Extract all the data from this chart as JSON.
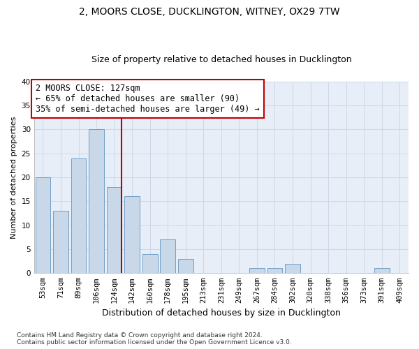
{
  "title": "2, MOORS CLOSE, DUCKLINGTON, WITNEY, OX29 7TW",
  "subtitle": "Size of property relative to detached houses in Ducklington",
  "xlabel": "Distribution of detached houses by size in Ducklington",
  "ylabel": "Number of detached properties",
  "categories": [
    "53sqm",
    "71sqm",
    "89sqm",
    "106sqm",
    "124sqm",
    "142sqm",
    "160sqm",
    "178sqm",
    "195sqm",
    "213sqm",
    "231sqm",
    "249sqm",
    "267sqm",
    "284sqm",
    "302sqm",
    "320sqm",
    "338sqm",
    "356sqm",
    "373sqm",
    "391sqm",
    "409sqm"
  ],
  "values": [
    20,
    13,
    24,
    30,
    18,
    16,
    4,
    7,
    3,
    0,
    0,
    0,
    1,
    1,
    2,
    0,
    0,
    0,
    0,
    1,
    0
  ],
  "bar_color": "#c8d8e8",
  "bar_edgecolor": "#6fa0c8",
  "vline_index": 4,
  "vline_color": "#c00000",
  "annotation_text": "2 MOORS CLOSE: 127sqm\n← 65% of detached houses are smaller (90)\n35% of semi-detached houses are larger (49) →",
  "annotation_box_color": "#ffffff",
  "annotation_box_edgecolor": "#c00000",
  "ylim": [
    0,
    40
  ],
  "yticks": [
    0,
    5,
    10,
    15,
    20,
    25,
    30,
    35,
    40
  ],
  "grid_color": "#ccd8e8",
  "background_color": "#e8eef8",
  "footer_text": "Contains HM Land Registry data © Crown copyright and database right 2024.\nContains public sector information licensed under the Open Government Licence v3.0.",
  "title_fontsize": 10,
  "subtitle_fontsize": 9,
  "ylabel_fontsize": 8,
  "xlabel_fontsize": 9,
  "tick_fontsize": 7.5,
  "annotation_fontsize": 8.5,
  "footer_fontsize": 6.5
}
